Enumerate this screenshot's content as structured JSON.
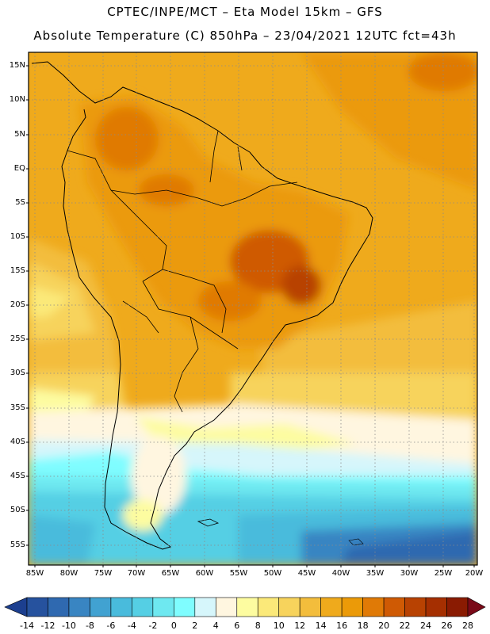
{
  "title": {
    "line1": "CPTEC/INPE/MCT –  Eta Model 15km – GFS",
    "line2": "Absolute Temperature (C) 850hPa – 23/04/2021 12UTC fct=43h"
  },
  "lat_labels": [
    "15N",
    "10N",
    "5N",
    "EQ",
    "5S",
    "10S",
    "15S",
    "20S",
    "25S",
    "30S",
    "35S",
    "40S",
    "45S",
    "50S",
    "55S"
  ],
  "lon_labels": [
    "85W",
    "80W",
    "75W",
    "70W",
    "65W",
    "60W",
    "55W",
    "50W",
    "45W",
    "40W",
    "35W",
    "30W",
    "25W",
    "20W"
  ],
  "colorbar": {
    "labels": [
      "-14",
      "-12",
      "-10",
      "-8",
      "-6",
      "-4",
      "-2",
      "0",
      "2",
      "4",
      "6",
      "8",
      "10",
      "12",
      "14",
      "16",
      "18",
      "20",
      "22",
      "24",
      "26",
      "28"
    ],
    "colors": [
      "#1c3f8f",
      "#26529e",
      "#2f69b0",
      "#3985c2",
      "#41a2d1",
      "#49bbdc",
      "#55cfe4",
      "#6ee8f0",
      "#7ffdff",
      "#d6f6fb",
      "#fff6e0",
      "#fdfca0",
      "#fbe979",
      "#f7d35c",
      "#f3bd3c",
      "#efaa1c",
      "#eb9a08",
      "#e07a06",
      "#cf5a04",
      "#b84202",
      "#a52f01",
      "#8a1b02",
      "#7a0a18"
    ]
  }
}
